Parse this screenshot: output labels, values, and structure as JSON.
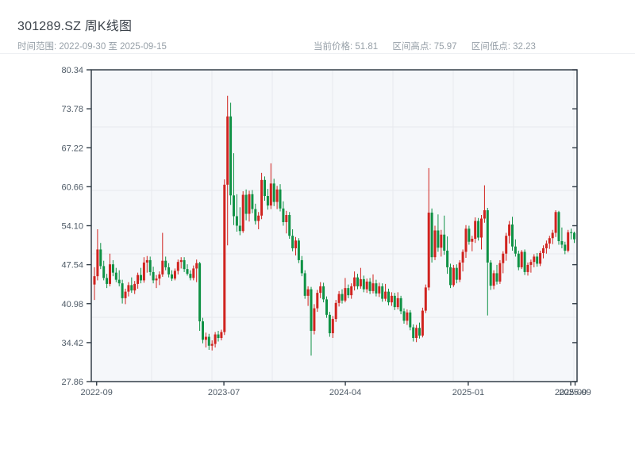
{
  "header": {
    "title": "301289.SZ 周K线图",
    "date_range": "时间范围: 2022-09-30 至 2025-09-15",
    "stats": [
      "当前价格: 51.81",
      "区间高点: 75.97",
      "区间低点: 32.23"
    ]
  },
  "chart_data": {
    "type": "candlestick",
    "title": "301289.SZ 周K线图",
    "xlabel": "",
    "ylabel": "",
    "period": "weekly",
    "date_start": "2022-09-30",
    "date_end": "2025-09-15",
    "current_price": 51.81,
    "range_high": 75.97,
    "range_low": 32.23,
    "y_min": 27.86,
    "y_max": 80.34,
    "grid": "on",
    "y_ticks": [
      "80.34",
      "73.78",
      "67.22",
      "60.66",
      "54.10",
      "47.54",
      "40.98",
      "34.42",
      "27.86"
    ],
    "x_ticks": [
      {
        "label": "2022-09",
        "pos": 0.011
      },
      {
        "label": "2023-07",
        "pos": 0.273
      },
      {
        "label": "2024-04",
        "pos": 0.523
      },
      {
        "label": "2025-01",
        "pos": 0.776
      },
      {
        "label": "2025-09",
        "pos": 0.987
      },
      {
        "label": "2025-09",
        "pos": 0.996
      }
    ],
    "colors": {
      "up": "#d0231f",
      "down": "#0f9245",
      "plot_bg": "#f5f7fa",
      "grid": "#e6e9ed",
      "spine": "#333e48",
      "tick_text": "#4e5a66",
      "header_text": "#3b424a",
      "sub_text": "#97a0a8"
    },
    "candles_ohlc": [
      [
        44.2,
        47.1,
        41.6,
        45.6
      ],
      [
        45.6,
        53.5,
        44.9,
        50.1
      ],
      [
        50.1,
        51.2,
        46.8,
        47.3
      ],
      [
        47.3,
        48.2,
        44.9,
        45.3
      ],
      [
        45.3,
        46.0,
        43.6,
        44.3
      ],
      [
        44.3,
        49.4,
        43.9,
        47.6
      ],
      [
        47.6,
        48.3,
        45.6,
        46.2
      ],
      [
        46.2,
        47.0,
        44.6,
        45.0
      ],
      [
        45.0,
        46.6,
        43.9,
        44.4
      ],
      [
        44.4,
        45.0,
        41.0,
        41.9
      ],
      [
        41.9,
        43.5,
        40.9,
        43.0
      ],
      [
        43.0,
        44.6,
        42.2,
        44.1
      ],
      [
        44.1,
        45.4,
        42.8,
        43.2
      ],
      [
        43.2,
        44.8,
        42.6,
        44.3
      ],
      [
        44.3,
        46.2,
        43.5,
        45.8
      ],
      [
        45.8,
        47.0,
        44.4,
        44.9
      ],
      [
        44.9,
        48.8,
        44.5,
        47.9
      ],
      [
        47.9,
        49.0,
        46.2,
        48.3
      ],
      [
        48.3,
        48.9,
        45.7,
        46.3
      ],
      [
        46.3,
        47.2,
        44.4,
        44.9
      ],
      [
        44.9,
        45.8,
        43.6,
        45.2
      ],
      [
        45.2,
        46.4,
        44.1,
        45.9
      ],
      [
        45.9,
        52.9,
        45.5,
        48.2
      ],
      [
        48.2,
        48.9,
        46.6,
        47.1
      ],
      [
        47.1,
        47.8,
        45.4,
        45.9
      ],
      [
        45.9,
        46.6,
        44.8,
        45.2
      ],
      [
        45.2,
        46.9,
        44.9,
        46.5
      ],
      [
        46.5,
        48.4,
        45.9,
        48.0
      ],
      [
        48.0,
        48.8,
        46.9,
        48.3
      ],
      [
        48.3,
        48.8,
        46.3,
        46.8
      ],
      [
        46.8,
        47.6,
        45.7,
        46.0
      ],
      [
        46.0,
        46.6,
        44.9,
        45.3
      ],
      [
        45.3,
        47.4,
        44.9,
        46.9
      ],
      [
        46.9,
        48.4,
        44.6,
        47.8
      ],
      [
        47.8,
        48.0,
        36.4,
        38.0
      ],
      [
        38.0,
        38.6,
        34.3,
        34.9
      ],
      [
        34.9,
        36.1,
        33.6,
        35.4
      ],
      [
        35.4,
        35.9,
        33.2,
        33.9
      ],
      [
        33.9,
        34.8,
        33.1,
        34.2
      ],
      [
        34.2,
        36.2,
        33.6,
        35.8
      ],
      [
        35.8,
        36.4,
        34.6,
        35.2
      ],
      [
        35.2,
        36.6,
        34.8,
        36.2
      ],
      [
        36.2,
        61.9,
        35.7,
        61.0
      ],
      [
        61.0,
        75.97,
        50.8,
        72.5
      ],
      [
        72.5,
        74.8,
        57.6,
        59.2
      ],
      [
        59.2,
        66.3,
        54.2,
        55.7
      ],
      [
        55.7,
        59.4,
        53.1,
        54.1
      ],
      [
        54.1,
        57.2,
        52.5,
        53.2
      ],
      [
        53.2,
        59.9,
        52.9,
        59.3
      ],
      [
        59.3,
        60.2,
        55.0,
        56.1
      ],
      [
        56.1,
        60.0,
        54.8,
        59.4
      ],
      [
        59.4,
        60.1,
        56.2,
        56.9
      ],
      [
        56.9,
        57.8,
        54.3,
        54.9
      ],
      [
        54.9,
        56.4,
        53.5,
        55.8
      ],
      [
        55.8,
        63.0,
        55.2,
        61.8
      ],
      [
        61.8,
        62.4,
        58.3,
        59.1
      ],
      [
        59.1,
        60.3,
        56.8,
        57.5
      ],
      [
        57.5,
        64.6,
        56.9,
        61.2
      ],
      [
        61.2,
        62.0,
        57.4,
        58.1
      ],
      [
        58.1,
        60.8,
        56.9,
        60.2
      ],
      [
        60.2,
        61.1,
        56.5,
        57.0
      ],
      [
        57.0,
        58.2,
        54.1,
        54.7
      ],
      [
        54.7,
        56.6,
        52.8,
        55.9
      ],
      [
        55.9,
        56.4,
        51.9,
        52.4
      ],
      [
        52.4,
        53.5,
        49.8,
        50.3
      ],
      [
        50.3,
        52.2,
        49.1,
        51.6
      ],
      [
        51.6,
        52.0,
        47.8,
        48.3
      ],
      [
        48.3,
        49.0,
        45.6,
        46.1
      ],
      [
        46.1,
        46.6,
        41.8,
        42.3
      ],
      [
        42.3,
        43.9,
        40.6,
        43.4
      ],
      [
        43.4,
        43.8,
        32.23,
        36.4
      ],
      [
        36.4,
        40.9,
        35.8,
        40.2
      ],
      [
        40.2,
        43.3,
        39.6,
        42.8
      ],
      [
        42.8,
        44.6,
        41.9,
        43.9
      ],
      [
        43.9,
        44.5,
        41.2,
        41.7
      ],
      [
        41.7,
        42.2,
        38.6,
        39.1
      ],
      [
        39.1,
        39.6,
        35.4,
        36.0
      ],
      [
        36.0,
        38.9,
        35.2,
        38.4
      ],
      [
        38.4,
        41.6,
        37.9,
        41.1
      ],
      [
        41.1,
        43.1,
        40.5,
        42.6
      ],
      [
        42.6,
        43.4,
        41.0,
        41.5
      ],
      [
        41.5,
        45.3,
        41.2,
        43.6
      ],
      [
        43.6,
        44.2,
        41.9,
        42.4
      ],
      [
        42.4,
        44.4,
        41.8,
        43.9
      ],
      [
        43.9,
        46.4,
        43.2,
        45.4
      ],
      [
        45.4,
        46.0,
        43.4,
        43.9
      ],
      [
        43.9,
        47.0,
        43.5,
        45.1
      ],
      [
        45.1,
        45.7,
        42.9,
        43.4
      ],
      [
        43.4,
        45.2,
        42.8,
        44.7
      ],
      [
        44.7,
        45.3,
        42.6,
        43.1
      ],
      [
        43.1,
        45.9,
        42.7,
        44.4
      ],
      [
        44.4,
        45.0,
        42.2,
        42.7
      ],
      [
        42.7,
        44.5,
        42.1,
        43.9
      ],
      [
        43.9,
        44.4,
        41.3,
        41.8
      ],
      [
        41.8,
        44.3,
        41.4,
        43.0
      ],
      [
        43.0,
        43.5,
        40.7,
        41.2
      ],
      [
        41.2,
        42.9,
        40.6,
        42.3
      ],
      [
        42.3,
        42.8,
        39.9,
        40.4
      ],
      [
        40.4,
        42.9,
        40.0,
        41.9
      ],
      [
        41.9,
        42.3,
        39.2,
        39.7
      ],
      [
        39.7,
        40.2,
        37.6,
        38.1
      ],
      [
        38.1,
        40.0,
        37.4,
        39.5
      ],
      [
        39.5,
        39.9,
        36.5,
        37.0
      ],
      [
        37.0,
        37.5,
        34.6,
        35.2
      ],
      [
        35.2,
        37.4,
        34.5,
        36.9
      ],
      [
        36.9,
        37.8,
        35.1,
        35.6
      ],
      [
        35.6,
        40.3,
        35.3,
        39.8
      ],
      [
        39.8,
        44.2,
        39.4,
        43.7
      ],
      [
        43.7,
        63.8,
        43.2,
        56.3
      ],
      [
        56.3,
        57.0,
        47.9,
        48.8
      ],
      [
        48.8,
        54.1,
        48.3,
        53.3
      ],
      [
        53.3,
        56.0,
        49.7,
        50.4
      ],
      [
        50.4,
        53.4,
        48.9,
        52.6
      ],
      [
        52.6,
        55.8,
        49.2,
        49.9
      ],
      [
        49.9,
        52.3,
        46.0,
        47.1
      ],
      [
        47.1,
        47.7,
        43.6,
        44.1
      ],
      [
        44.1,
        47.5,
        43.8,
        47.0
      ],
      [
        47.0,
        47.6,
        44.4,
        45.0
      ],
      [
        45.0,
        48.3,
        44.6,
        47.9
      ],
      [
        47.9,
        50.1,
        46.4,
        49.7
      ],
      [
        49.7,
        54.2,
        48.7,
        53.6
      ],
      [
        53.6,
        54.1,
        50.9,
        51.4
      ],
      [
        51.4,
        52.4,
        49.8,
        51.9
      ],
      [
        51.9,
        55.5,
        51.2,
        54.9
      ],
      [
        54.9,
        55.4,
        51.6,
        52.1
      ],
      [
        52.1,
        55.9,
        50.1,
        55.3
      ],
      [
        55.3,
        60.9,
        54.6,
        56.7
      ],
      [
        56.7,
        57.1,
        39.0,
        47.9
      ],
      [
        47.9,
        48.3,
        43.3,
        44.0
      ],
      [
        44.0,
        46.6,
        43.4,
        46.1
      ],
      [
        46.1,
        47.5,
        44.2,
        44.7
      ],
      [
        44.7,
        48.3,
        44.3,
        47.8
      ],
      [
        47.8,
        49.8,
        46.1,
        49.4
      ],
      [
        49.4,
        52.9,
        48.2,
        52.4
      ],
      [
        52.4,
        54.9,
        51.1,
        54.3
      ],
      [
        54.3,
        55.6,
        49.9,
        50.6
      ],
      [
        50.6,
        51.8,
        48.9,
        49.4
      ],
      [
        49.4,
        49.9,
        46.6,
        47.1
      ],
      [
        47.1,
        50.0,
        46.8,
        49.7
      ],
      [
        49.7,
        50.1,
        45.8,
        46.3
      ],
      [
        46.3,
        47.9,
        45.7,
        47.5
      ],
      [
        47.5,
        48.4,
        46.2,
        48.0
      ],
      [
        48.0,
        49.3,
        47.1,
        48.9
      ],
      [
        48.9,
        49.5,
        47.2,
        47.7
      ],
      [
        47.7,
        49.9,
        47.3,
        49.5
      ],
      [
        49.5,
        50.8,
        48.6,
        50.3
      ],
      [
        50.3,
        51.6,
        49.4,
        51.1
      ],
      [
        51.1,
        52.4,
        50.2,
        52.0
      ],
      [
        52.0,
        53.4,
        51.0,
        52.9
      ],
      [
        52.9,
        56.7,
        52.2,
        56.4
      ],
      [
        56.4,
        56.6,
        50.9,
        51.5
      ],
      [
        51.5,
        53.8,
        50.3,
        50.9
      ],
      [
        50.9,
        51.4,
        49.3,
        49.9
      ],
      [
        49.9,
        53.4,
        49.6,
        53.0
      ],
      [
        53.0,
        53.6,
        51.8,
        52.9
      ],
      [
        52.9,
        53.1,
        51.2,
        51.81
      ]
    ]
  }
}
